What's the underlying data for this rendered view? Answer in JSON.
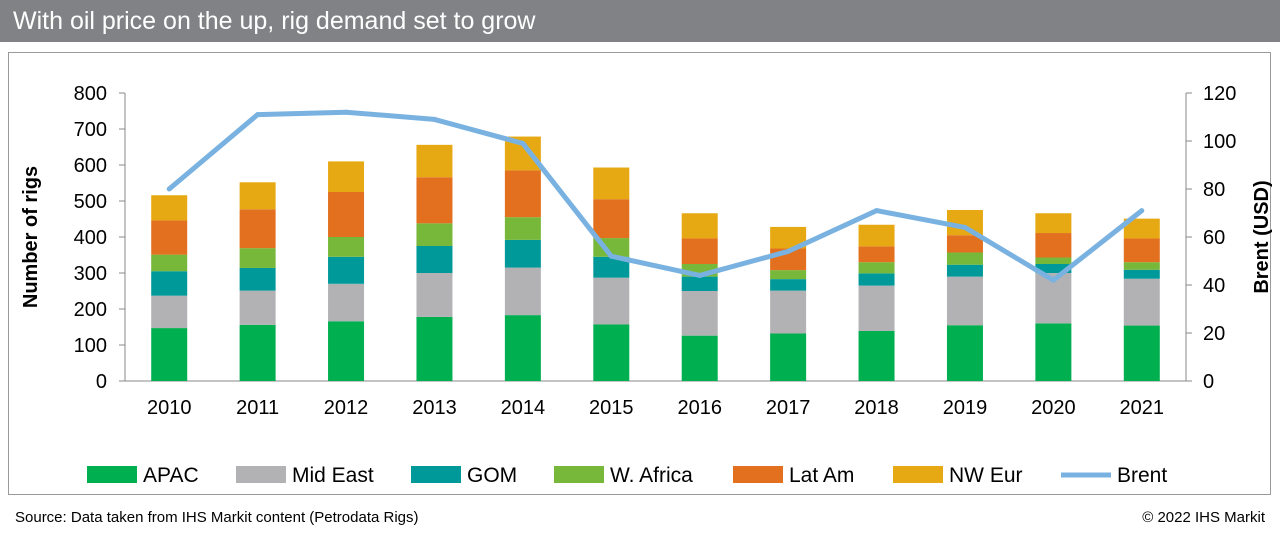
{
  "header": {
    "title": "With oil price on the up, rig demand set to grow"
  },
  "chart_data": {
    "type": "bar",
    "stacked": true,
    "title": "With oil price on the up, rig demand set to grow",
    "categories": [
      "2010",
      "2011",
      "2012",
      "2013",
      "2014",
      "2015",
      "2016",
      "2017",
      "2018",
      "2019",
      "2020",
      "2021"
    ],
    "series": [
      {
        "name": "APAC",
        "color": "#00b050",
        "values": [
          147,
          156,
          166,
          178,
          183,
          157,
          126,
          132,
          139,
          155,
          160,
          154
        ]
      },
      {
        "name": "Mid East",
        "color": "#b2b2b4",
        "values": [
          90,
          95,
          104,
          122,
          132,
          130,
          124,
          119,
          126,
          135,
          140,
          130
        ]
      },
      {
        "name": "GOM",
        "color": "#00999a",
        "values": [
          68,
          63,
          75,
          75,
          77,
          58,
          40,
          32,
          34,
          33,
          25,
          25
        ]
      },
      {
        "name": "W. Africa",
        "color": "#77b73a",
        "values": [
          46,
          55,
          55,
          63,
          63,
          52,
          35,
          25,
          31,
          34,
          18,
          21
        ]
      },
      {
        "name": "Lat Am",
        "color": "#e2701f",
        "values": [
          95,
          108,
          125,
          128,
          130,
          108,
          71,
          60,
          44,
          48,
          68,
          66
        ]
      },
      {
        "name": "NW Eur",
        "color": "#e7a913",
        "values": [
          70,
          75,
          85,
          90,
          94,
          88,
          70,
          60,
          60,
          70,
          55,
          55
        ]
      }
    ],
    "line_series": {
      "name": "Brent",
      "axis": "secondary",
      "color": "#79b2e0",
      "values": [
        80,
        111,
        112,
        109,
        99,
        52,
        44,
        54,
        71,
        64,
        42,
        71
      ]
    },
    "ylabel": "Number of rigs",
    "y2label": "Brent (USD)",
    "ylim": [
      0,
      800
    ],
    "y2lim": [
      0,
      120
    ],
    "yticks": [
      "0",
      "100",
      "200",
      "300",
      "400",
      "500",
      "600",
      "700",
      "800"
    ],
    "y2ticks": [
      "0",
      "20",
      "40",
      "60",
      "80",
      "100",
      "120"
    ],
    "legend": [
      "APAC",
      "Mid East",
      "GOM",
      "W. Africa",
      "Lat Am",
      "NW Eur",
      "Brent"
    ],
    "legend_position": "bottom"
  },
  "footer": {
    "source": "Source: Data taken from IHS Markit content (Petrodata Rigs)",
    "copyright": "© 2022 IHS Markit"
  }
}
